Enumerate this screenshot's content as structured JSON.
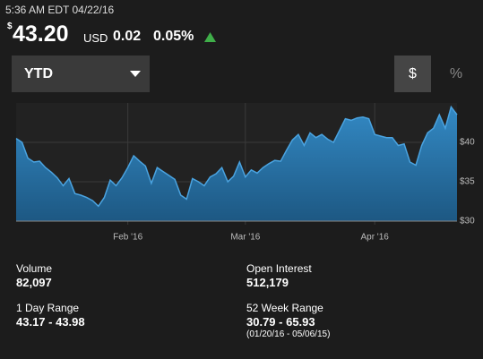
{
  "header": {
    "timestamp": "5:36 AM EDT 04/22/16",
    "currency_symbol": "$",
    "price": "43.20",
    "currency": "USD",
    "change": "0.02",
    "change_percent": "0.05%"
  },
  "controls": {
    "range": "YTD",
    "dollar": "$",
    "percent": "%"
  },
  "chart_data": {
    "type": "area",
    "color": "#4aa3e0",
    "values": [
      40.5,
      40,
      38,
      37.5,
      37.6,
      36.8,
      36.2,
      35.5,
      34.5,
      35.4,
      33.5,
      33.3,
      33,
      32.6,
      31.9,
      33,
      35.2,
      34.5,
      35.5,
      36.8,
      38.3,
      37.6,
      37,
      34.8,
      36.8,
      36.3,
      35.8,
      35.3,
      33.3,
      32.8,
      35.4,
      35,
      34.5,
      35.6,
      36,
      36.8,
      35,
      35.7,
      37.5,
      35.6,
      36.5,
      36.1,
      36.8,
      37.3,
      37.7,
      37.6,
      39,
      40.3,
      41,
      39.6,
      41.2,
      40.6,
      41,
      40.4,
      40,
      41.5,
      43,
      42.8,
      43.1,
      43.2,
      43,
      41,
      40.8,
      40.6,
      40.6,
      39.6,
      39.8,
      37.5,
      37.1,
      39.6,
      41.2,
      41.8,
      43.5,
      41.8,
      44.5,
      43.5
    ],
    "xlim": [
      0,
      75
    ],
    "xticks": [
      {
        "value": 19,
        "label": "Feb '16"
      },
      {
        "value": 39,
        "label": "Mar '16"
      },
      {
        "value": 61,
        "label": "Apr '16"
      }
    ],
    "ylim": [
      30,
      45
    ],
    "yticks": [
      {
        "value": 30,
        "label": "$30"
      },
      {
        "value": 35,
        "label": "$35"
      },
      {
        "value": 40,
        "label": "$40"
      }
    ],
    "grid": true
  },
  "stats": [
    {
      "label": "Volume",
      "value": "82,097"
    },
    {
      "label": "Open Interest",
      "value": "512,179"
    },
    {
      "label": "1 Day Range",
      "value": "43.17 - 43.98"
    },
    {
      "label": "52 Week Range",
      "value": "30.79 - 65.93",
      "note": "(01/20/16 - 05/06/15)"
    }
  ]
}
